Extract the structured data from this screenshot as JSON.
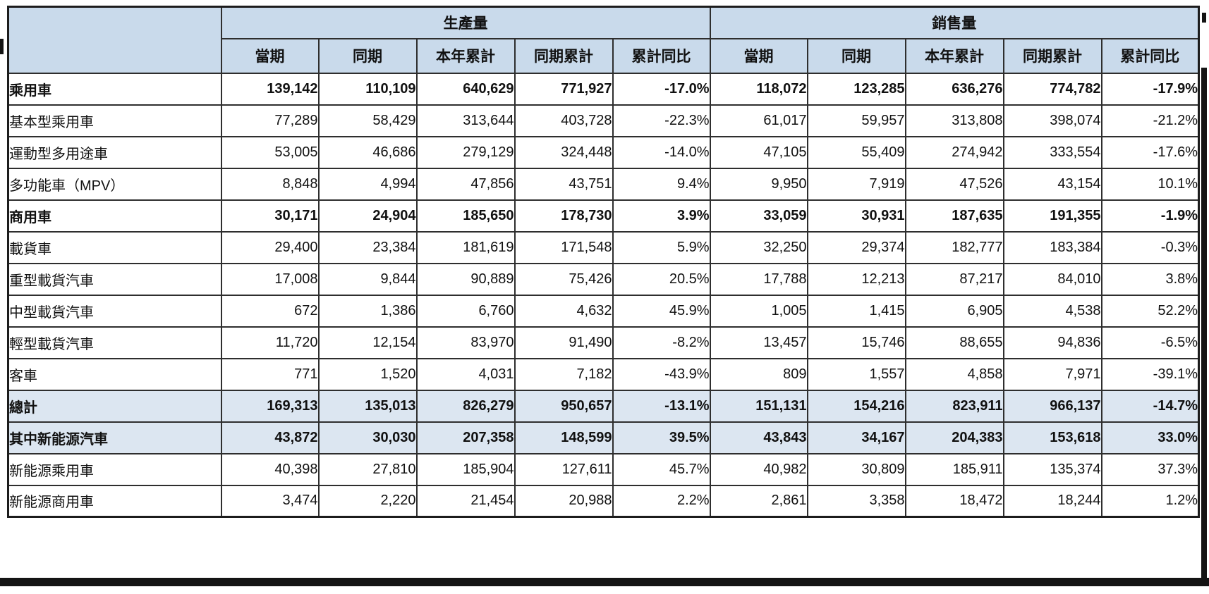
{
  "table": {
    "group_headers": [
      "生產量",
      "銷售量"
    ],
    "columns": [
      "當期",
      "同期",
      "本年累計",
      "同期累計",
      "累計同比"
    ],
    "rows": [
      {
        "label": "乘用車",
        "level": 0,
        "bold": true,
        "highlight": false,
        "production": [
          "139,142",
          "110,109",
          "640,629",
          "771,927",
          "-17.0%"
        ],
        "sales": [
          "118,072",
          "123,285",
          "636,276",
          "774,782",
          "-17.9%"
        ]
      },
      {
        "label": "基本型乘用車",
        "level": 1,
        "bold": false,
        "highlight": false,
        "production": [
          "77,289",
          "58,429",
          "313,644",
          "403,728",
          "-22.3%"
        ],
        "sales": [
          "61,017",
          "59,957",
          "313,808",
          "398,074",
          "-21.2%"
        ]
      },
      {
        "label": "運動型多用途車",
        "level": 1,
        "bold": false,
        "highlight": false,
        "production": [
          "53,005",
          "46,686",
          "279,129",
          "324,448",
          "-14.0%"
        ],
        "sales": [
          "47,105",
          "55,409",
          "274,942",
          "333,554",
          "-17.6%"
        ]
      },
      {
        "label": "多功能車（MPV）",
        "level": 1,
        "bold": false,
        "highlight": false,
        "production": [
          "8,848",
          "4,994",
          "47,856",
          "43,751",
          "9.4%"
        ],
        "sales": [
          "9,950",
          "7,919",
          "47,526",
          "43,154",
          "10.1%"
        ]
      },
      {
        "label": "商用車",
        "level": 0,
        "bold": true,
        "highlight": false,
        "production": [
          "30,171",
          "24,904",
          "185,650",
          "178,730",
          "3.9%"
        ],
        "sales": [
          "33,059",
          "30,931",
          "187,635",
          "191,355",
          "-1.9%"
        ]
      },
      {
        "label": "載貨車",
        "level": 1,
        "bold": false,
        "highlight": false,
        "production": [
          "29,400",
          "23,384",
          "181,619",
          "171,548",
          "5.9%"
        ],
        "sales": [
          "32,250",
          "29,374",
          "182,777",
          "183,384",
          "-0.3%"
        ]
      },
      {
        "label": "重型載貨汽車",
        "level": 2,
        "bold": false,
        "highlight": false,
        "production": [
          "17,008",
          "9,844",
          "90,889",
          "75,426",
          "20.5%"
        ],
        "sales": [
          "17,788",
          "12,213",
          "87,217",
          "84,010",
          "3.8%"
        ]
      },
      {
        "label": "中型載貨汽車",
        "level": 2,
        "bold": false,
        "highlight": false,
        "production": [
          "672",
          "1,386",
          "6,760",
          "4,632",
          "45.9%"
        ],
        "sales": [
          "1,005",
          "1,415",
          "6,905",
          "4,538",
          "52.2%"
        ]
      },
      {
        "label": "輕型載貨汽車",
        "level": 2,
        "bold": false,
        "highlight": false,
        "production": [
          "11,720",
          "12,154",
          "83,970",
          "91,490",
          "-8.2%"
        ],
        "sales": [
          "13,457",
          "15,746",
          "88,655",
          "94,836",
          "-6.5%"
        ]
      },
      {
        "label": "客車",
        "level": 1,
        "bold": false,
        "highlight": false,
        "production": [
          "771",
          "1,520",
          "4,031",
          "7,182",
          "-43.9%"
        ],
        "sales": [
          "809",
          "1,557",
          "4,858",
          "7,971",
          "-39.1%"
        ]
      },
      {
        "label": "總計",
        "level": 0,
        "bold": true,
        "highlight": true,
        "production": [
          "169,313",
          "135,013",
          "826,279",
          "950,657",
          "-13.1%"
        ],
        "sales": [
          "151,131",
          "154,216",
          "823,911",
          "966,137",
          "-14.7%"
        ]
      },
      {
        "label": "其中新能源汽車",
        "level": 0,
        "bold": true,
        "highlight": true,
        "production": [
          "43,872",
          "30,030",
          "207,358",
          "148,599",
          "39.5%"
        ],
        "sales": [
          "43,843",
          "34,167",
          "204,383",
          "153,618",
          "33.0%"
        ]
      },
      {
        "label": "新能源乘用車",
        "level": 1,
        "bold": false,
        "highlight": false,
        "production": [
          "40,398",
          "27,810",
          "185,904",
          "127,611",
          "45.7%"
        ],
        "sales": [
          "40,982",
          "30,809",
          "185,911",
          "135,374",
          "37.3%"
        ]
      },
      {
        "label": "新能源商用車",
        "level": 1,
        "bold": false,
        "highlight": false,
        "production": [
          "3,474",
          "2,220",
          "21,454",
          "20,988",
          "2.2%"
        ],
        "sales": [
          "2,861",
          "3,358",
          "18,472",
          "18,244",
          "1.2%"
        ]
      }
    ]
  },
  "colors": {
    "header_bg": "#c9daeb",
    "highlight_bg": "#dce6f1",
    "border": "#2e2e2e"
  }
}
